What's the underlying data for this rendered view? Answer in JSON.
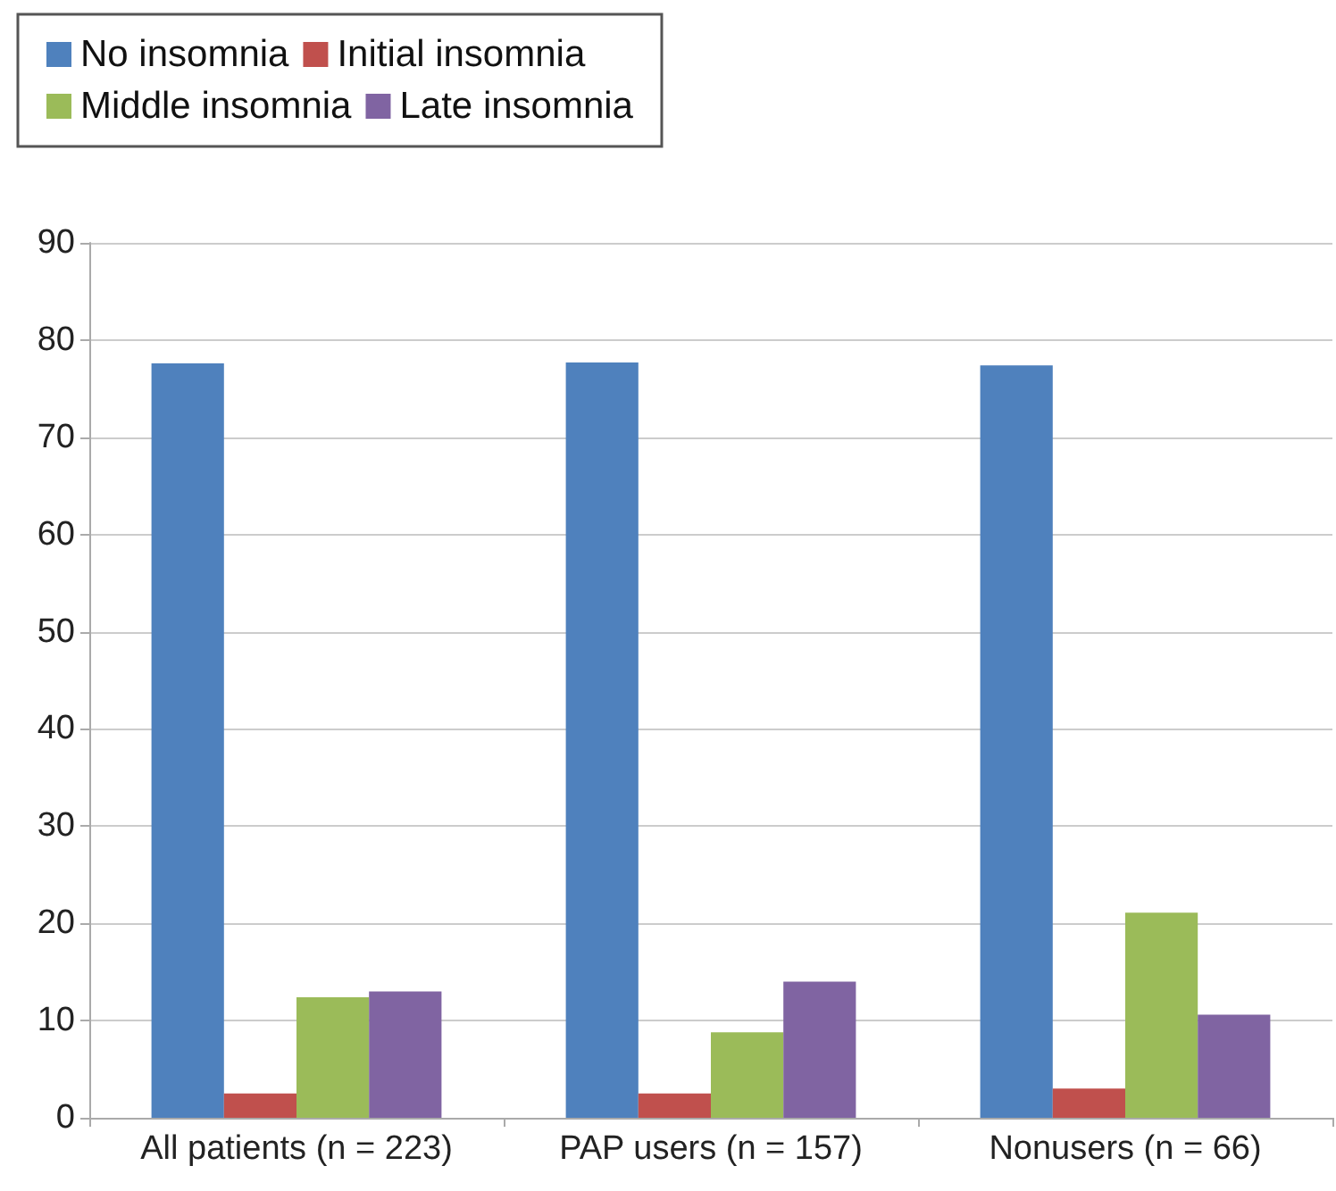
{
  "chart_data": {
    "type": "bar",
    "categories": [
      "All patients (n = 223)",
      "PAP users (n = 157)",
      "Nonusers (n = 66)"
    ],
    "series": [
      {
        "name": "No insomnia",
        "color": "#4f81bd",
        "values": [
          77.6,
          77.7,
          77.4
        ]
      },
      {
        "name": "Initial insomnia",
        "color": "#c0504d",
        "values": [
          2.5,
          2.5,
          3
        ]
      },
      {
        "name": "Middle insomnia",
        "color": "#9bbb59",
        "values": [
          12.4,
          8.8,
          21.1
        ]
      },
      {
        "name": "Late insomnia",
        "color": "#8064a2",
        "values": [
          13,
          14,
          10.6
        ]
      }
    ],
    "ylim": [
      0,
      90
    ],
    "yticks": [
      0,
      10,
      20,
      30,
      40,
      50,
      60,
      70,
      80,
      90
    ],
    "grid": "y",
    "legend": "top left"
  }
}
